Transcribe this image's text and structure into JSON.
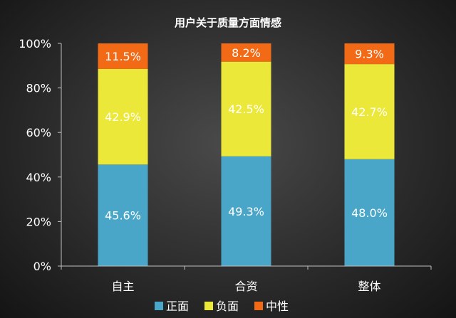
{
  "chart_data": {
    "type": "bar",
    "stacked": true,
    "title": "用户关于质量方面情感",
    "categories": [
      "自主",
      "合资",
      "整体"
    ],
    "series": [
      {
        "name": "正面",
        "color": "#4aa6c8",
        "values": [
          45.6,
          49.3,
          48.0
        ],
        "labels": [
          "45.6%",
          "49.3%",
          "48.0%"
        ]
      },
      {
        "name": "负面",
        "color": "#ece83a",
        "values": [
          42.9,
          42.5,
          42.7
        ],
        "labels": [
          "42.9%",
          "42.5%",
          "42.7%"
        ]
      },
      {
        "name": "中性",
        "color": "#f26a16",
        "values": [
          11.5,
          8.2,
          9.3
        ],
        "labels": [
          "11.5%",
          "8.2%",
          "9.3%"
        ]
      }
    ],
    "ylim": [
      0,
      100
    ],
    "yticks": [
      "0%",
      "20%",
      "40%",
      "60%",
      "80%",
      "100%"
    ],
    "grid": false,
    "legend_position": "bottom",
    "axis_color": "#bfbfbf"
  }
}
